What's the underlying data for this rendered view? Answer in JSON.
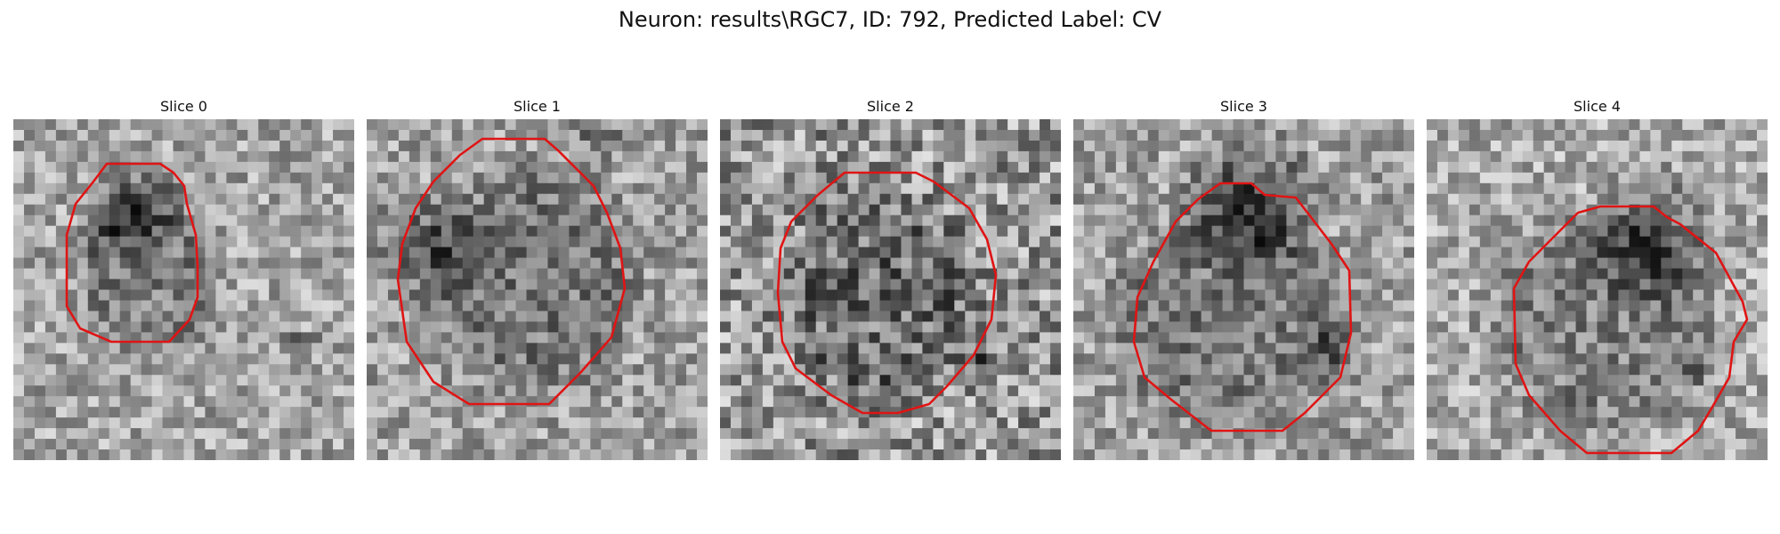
{
  "figure": {
    "title": "Neuron: results\\RGC7, ID: 792, Predicted Label: CV"
  },
  "contour_color": "#e01414",
  "slices": [
    {
      "title": "Slice 0"
    },
    {
      "title": "Slice 1"
    },
    {
      "title": "Slice 2"
    },
    {
      "title": "Slice 3"
    },
    {
      "title": "Slice 4"
    }
  ]
}
